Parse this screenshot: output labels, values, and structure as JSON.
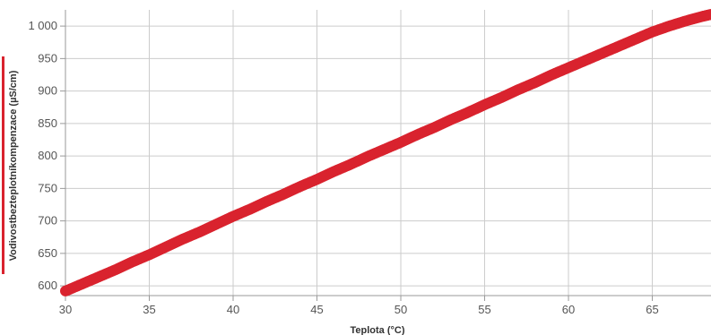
{
  "chart_data": {
    "type": "scatter",
    "xlabel": "Teplota (°C)",
    "ylabel": "Vodivostbezteplotníkompenzace (µS/cm)",
    "xlim": [
      30,
      68.5
    ],
    "ylim": [
      585,
      1025
    ],
    "xticks": [
      30,
      35,
      40,
      45,
      50,
      55,
      60,
      65
    ],
    "yticks": [
      600,
      650,
      700,
      750,
      800,
      850,
      900,
      950,
      1000
    ],
    "ytick_labels": [
      "600",
      "650",
      "700",
      "750",
      "800",
      "850",
      "900",
      "950",
      "1 000"
    ],
    "grid": true,
    "series": [
      {
        "color": "#d9232e",
        "x": [
          30,
          31,
          32,
          33,
          34,
          35,
          36,
          37,
          38,
          39,
          40,
          41,
          42,
          43,
          44,
          45,
          46,
          47,
          48,
          49,
          50,
          51,
          52,
          53,
          54,
          55,
          56,
          57,
          58,
          59,
          60,
          61,
          62,
          63,
          64,
          65,
          66,
          67,
          68,
          68.5
        ],
        "y": [
          592,
          603,
          614,
          625,
          637,
          648,
          660,
          672,
          683,
          695,
          707,
          718,
          730,
          741,
          753,
          764,
          776,
          787,
          799,
          810,
          821,
          833,
          844,
          856,
          867,
          879,
          890,
          902,
          913,
          925,
          936,
          947,
          958,
          969,
          980,
          991,
          1000,
          1008,
          1015,
          1018
        ]
      }
    ]
  }
}
